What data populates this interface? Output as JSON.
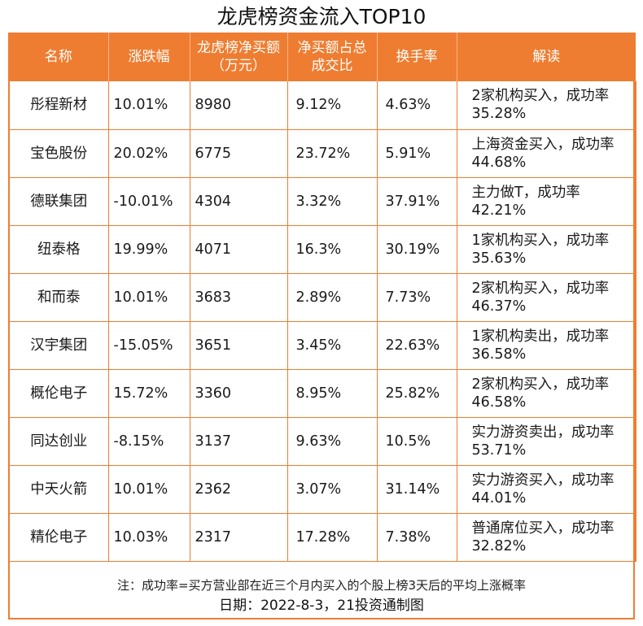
{
  "title": "龙虎榜资金流入TOP10",
  "headers": [
    "名称",
    "涨跌幅",
    "龙虎榜净买额（万元）",
    "净买额占总成交比",
    "换手率",
    "解读"
  ],
  "rows": [
    {
      "name": "彤程新材",
      "change": "10.01%",
      "net_buy": "8980",
      "share": "9.12%",
      "turnover": "4.63%",
      "note": "2家机构买入，成功率35.28%"
    },
    {
      "name": "宝色股份",
      "change": "20.02%",
      "net_buy": "6775",
      "share": "23.72%",
      "turnover": "5.91%",
      "note": "上海资金买入，成功率44.68%"
    },
    {
      "name": "德联集团",
      "change": "-10.01%",
      "net_buy": "4304",
      "share": "3.32%",
      "turnover": "37.91%",
      "note": "主力做T，成功率42.21%"
    },
    {
      "name": "纽泰格",
      "change": "19.99%",
      "net_buy": "4071",
      "share": "16.3%",
      "turnover": "30.19%",
      "note": "1家机构买入，成功率35.63%"
    },
    {
      "name": "和而泰",
      "change": "10.01%",
      "net_buy": "3683",
      "share": "2.89%",
      "turnover": "7.73%",
      "note": "2家机构买入，成功率46.37%"
    },
    {
      "name": "汉宇集团",
      "change": "-15.05%",
      "net_buy": "3651",
      "share": "3.45%",
      "turnover": "22.63%",
      "note": "1家机构卖出，成功率36.58%"
    },
    {
      "name": "概伦电子",
      "change": "15.72%",
      "net_buy": "3360",
      "share": "8.95%",
      "turnover": "25.82%",
      "note": "2家机构买入，成功率46.58%"
    },
    {
      "name": "同达创业",
      "change": "-8.15%",
      "net_buy": "3137",
      "share": "9.63%",
      "turnover": "10.5%",
      "note": "实力游资卖出，成功率53.71%"
    },
    {
      "name": "中天火箭",
      "change": "10.01%",
      "net_buy": "2362",
      "share": "3.07%",
      "turnover": "31.14%",
      "note": "实力游资买入，成功率44.01%"
    },
    {
      "name": "精伦电子",
      "change": "10.03%",
      "net_buy": "2317",
      "share": "17.28%",
      "turnover": "7.38%",
      "note": "普通席位买入，成功率32.82%"
    }
  ],
  "footnote": "注：成功率=买方营业部在近三个月内买入的个股上榜3天后的平均上涨概率",
  "date_line": "日期：2022-8-3，21投资通制图",
  "colors": {
    "accent": "#ee7d31",
    "header_text": "#ffffff"
  }
}
